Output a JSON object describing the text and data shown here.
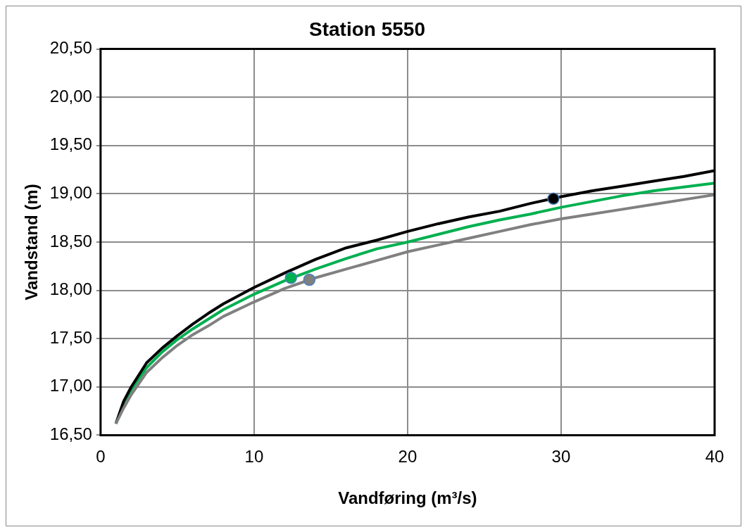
{
  "chart_data": {
    "type": "line",
    "title": "Station 5550",
    "xlabel": "Vandføring (m³/s)",
    "ylabel": "Vandstand (m)",
    "xlim": [
      0,
      40
    ],
    "xticks": [
      0,
      10,
      20,
      30,
      40
    ],
    "ylim": [
      16.5,
      20.5
    ],
    "yticks": [
      {
        "value": 16.5,
        "label": "16,50"
      },
      {
        "value": 17,
        "label": "17,00"
      },
      {
        "value": 17.5,
        "label": "17,50"
      },
      {
        "value": 18,
        "label": "18,00"
      },
      {
        "value": 18.5,
        "label": "18,50"
      },
      {
        "value": 19,
        "label": "19,00"
      },
      {
        "value": 19.5,
        "label": "19,50"
      },
      {
        "value": 20,
        "label": "20,00"
      },
      {
        "value": 20.5,
        "label": "20,50"
      }
    ],
    "grid": true,
    "legend": false,
    "marker": "none",
    "line_style": "solid",
    "series": [
      {
        "color": "#808080",
        "x": [
          1,
          1.5,
          2,
          3,
          4,
          5,
          6,
          7,
          8,
          10,
          12,
          14,
          16,
          18,
          20,
          22,
          24,
          26,
          28,
          30,
          32,
          34,
          36,
          38,
          40
        ],
        "values": [
          16.62,
          16.78,
          16.92,
          17.15,
          17.3,
          17.43,
          17.54,
          17.63,
          17.73,
          17.88,
          18.02,
          18.13,
          18.22,
          18.31,
          18.4,
          18.47,
          18.54,
          18.61,
          18.68,
          18.74,
          18.79,
          18.84,
          18.89,
          18.94,
          18.99
        ]
      },
      {
        "color": "#000000",
        "x": [
          1,
          1.5,
          2,
          3,
          4,
          5,
          6,
          7,
          8,
          10,
          12,
          14,
          16,
          18,
          20,
          22,
          24,
          26,
          28,
          30,
          32,
          34,
          36,
          38,
          40
        ],
        "values": [
          16.62,
          16.85,
          17.0,
          17.25,
          17.4,
          17.53,
          17.65,
          17.76,
          17.86,
          18.03,
          18.18,
          18.32,
          18.44,
          18.52,
          18.61,
          18.69,
          18.76,
          18.82,
          18.9,
          18.97,
          19.03,
          19.08,
          19.13,
          19.18,
          19.24
        ]
      },
      {
        "color": "#00b050",
        "x": [
          1,
          1.5,
          2,
          3,
          4,
          5,
          6,
          7,
          8,
          10,
          12,
          14,
          16,
          18,
          20,
          22,
          24,
          26,
          28,
          30,
          32,
          34,
          36,
          38,
          40
        ],
        "values": [
          16.62,
          16.83,
          16.97,
          17.2,
          17.36,
          17.49,
          17.6,
          17.7,
          17.8,
          17.96,
          18.1,
          18.22,
          18.33,
          18.43,
          18.5,
          18.58,
          18.66,
          18.73,
          18.79,
          18.86,
          18.92,
          18.98,
          19.03,
          19.07,
          19.11
        ]
      },
      {
        "type": "scatter",
        "marker": "circle",
        "color": "#00b050",
        "x": [
          12.4
        ],
        "values": [
          18.13
        ]
      },
      {
        "type": "scatter",
        "marker": "circle",
        "color": "#808080",
        "x": [
          13.6
        ],
        "values": [
          18.11
        ]
      },
      {
        "type": "scatter",
        "marker": "circle",
        "color": "#000000",
        "x": [
          29.5
        ],
        "values": [
          18.95
        ]
      }
    ]
  }
}
